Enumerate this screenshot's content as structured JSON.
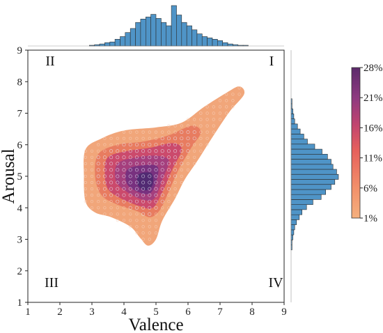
{
  "chart_data": {
    "type": "scatter",
    "subtype": "joint-kde-density-with-marginal-histograms",
    "xlabel": "Valence",
    "ylabel": "Arousal",
    "xlim": [
      1,
      9
    ],
    "ylim": [
      1,
      9
    ],
    "x_ticks": [
      "1",
      "2",
      "3",
      "4",
      "5",
      "6",
      "7",
      "8",
      "9"
    ],
    "y_ticks": [
      "1",
      "2",
      "3",
      "4",
      "5",
      "6",
      "7",
      "8",
      "9"
    ],
    "quadrants": [
      {
        "label": "I",
        "position": "top-right"
      },
      {
        "label": "II",
        "position": "top-left"
      },
      {
        "label": "III",
        "position": "bottom-left"
      },
      {
        "label": "IV",
        "position": "bottom-right"
      }
    ],
    "colorbar": {
      "ticks": [
        "28%",
        "21%",
        "16%",
        "11%",
        "6%",
        "1%"
      ],
      "colors": [
        "#5c2a6b",
        "#8e3a80",
        "#c1446f",
        "#e6605c",
        "#f2906a",
        "#f5b07e"
      ]
    },
    "density_levels": [
      {
        "level": "1%",
        "color": "#f0a173",
        "points": [
          [
            2.8,
            5.85
          ],
          [
            3.3,
            6.2
          ],
          [
            4.0,
            6.45
          ],
          [
            5.0,
            6.55
          ],
          [
            5.8,
            6.7
          ],
          [
            6.5,
            7.2
          ],
          [
            7.2,
            7.65
          ],
          [
            7.6,
            7.85
          ],
          [
            7.75,
            7.6
          ],
          [
            7.3,
            7.05
          ],
          [
            6.8,
            6.3
          ],
          [
            6.3,
            5.5
          ],
          [
            5.9,
            4.9
          ],
          [
            5.6,
            4.3
          ],
          [
            5.2,
            3.6
          ],
          [
            5.0,
            3.0
          ],
          [
            4.75,
            2.8
          ],
          [
            4.5,
            3.05
          ],
          [
            4.2,
            3.4
          ],
          [
            3.6,
            3.7
          ],
          [
            3.1,
            3.85
          ],
          [
            2.8,
            4.2
          ],
          [
            2.75,
            5.0
          ]
        ]
      },
      {
        "level": "6%",
        "color": "#e7795f",
        "points": [
          [
            3.2,
            5.7
          ],
          [
            3.8,
            6.0
          ],
          [
            4.6,
            6.1
          ],
          [
            5.4,
            6.3
          ],
          [
            6.1,
            6.6
          ],
          [
            6.4,
            6.4
          ],
          [
            6.1,
            5.9
          ],
          [
            5.7,
            5.2
          ],
          [
            5.35,
            4.4
          ],
          [
            5.1,
            3.9
          ],
          [
            4.8,
            3.7
          ],
          [
            4.4,
            3.9
          ],
          [
            3.8,
            4.1
          ],
          [
            3.3,
            4.4
          ],
          [
            3.1,
            5.0
          ]
        ]
      },
      {
        "level": "11%",
        "color": "#c9486d",
        "points": [
          [
            3.5,
            5.6
          ],
          [
            4.1,
            5.8
          ],
          [
            4.8,
            5.9
          ],
          [
            5.5,
            6.05
          ],
          [
            5.8,
            5.85
          ],
          [
            5.5,
            5.2
          ],
          [
            5.2,
            4.5
          ],
          [
            4.9,
            4.0
          ],
          [
            4.5,
            4.05
          ],
          [
            3.9,
            4.3
          ],
          [
            3.5,
            4.6
          ],
          [
            3.4,
            5.1
          ]
        ]
      },
      {
        "level": "16%",
        "color": "#a23e7e",
        "points": [
          [
            3.8,
            5.4
          ],
          [
            4.4,
            5.6
          ],
          [
            5.0,
            5.65
          ],
          [
            5.4,
            5.5
          ],
          [
            5.2,
            4.9
          ],
          [
            4.95,
            4.3
          ],
          [
            4.6,
            4.25
          ],
          [
            4.1,
            4.5
          ],
          [
            3.75,
            4.85
          ]
        ]
      },
      {
        "level": "21%",
        "color": "#753080",
        "points": [
          [
            4.1,
            5.2
          ],
          [
            4.6,
            5.35
          ],
          [
            5.05,
            5.3
          ],
          [
            5.0,
            4.8
          ],
          [
            4.8,
            4.45
          ],
          [
            4.45,
            4.5
          ],
          [
            4.1,
            4.75
          ]
        ]
      },
      {
        "level": "28%",
        "color": "#4f2a72",
        "points": [
          [
            4.45,
            5.05
          ],
          [
            4.85,
            5.1
          ],
          [
            4.9,
            4.75
          ],
          [
            4.7,
            4.55
          ],
          [
            4.45,
            4.7
          ]
        ]
      }
    ],
    "x_histogram": {
      "bin_edges_start": 1.0,
      "bin_width": 0.16,
      "counts": [
        0,
        0,
        0,
        0,
        0,
        0,
        0,
        0,
        0,
        0,
        0,
        0,
        1,
        2,
        3,
        5,
        6,
        10,
        14,
        20,
        26,
        35,
        40,
        43,
        47,
        41,
        35,
        30,
        60,
        46,
        35,
        30,
        24,
        18,
        14,
        12,
        10,
        8,
        5,
        3,
        2,
        1,
        1,
        0,
        0,
        0,
        0,
        0,
        0,
        0
      ]
    },
    "y_histogram": {
      "bin_edges_start": 2.5,
      "bin_width": 0.16,
      "counts": [
        0,
        1,
        1,
        2,
        3,
        4,
        6,
        9,
        12,
        17,
        24,
        33,
        38,
        44,
        48,
        52,
        50,
        46,
        44,
        40,
        34,
        26,
        18,
        14,
        10,
        7,
        4,
        3,
        2,
        1,
        1,
        0,
        0,
        0,
        0
      ]
    }
  }
}
